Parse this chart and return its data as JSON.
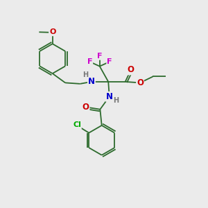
{
  "background_color": "#ebebeb",
  "bond_color": "#2d6b2d",
  "atom_colors": {
    "O": "#cc0000",
    "N": "#0000cc",
    "F": "#cc00cc",
    "Cl": "#00aa00",
    "H": "#777777",
    "C": "#2d6b2d"
  },
  "figsize": [
    3.0,
    3.0
  ],
  "dpi": 100
}
